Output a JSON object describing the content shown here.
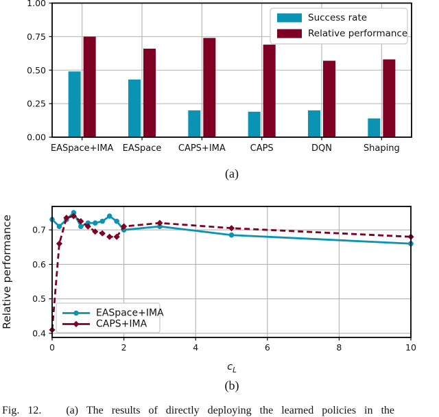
{
  "figure": {
    "panel_a_label": "(a)",
    "panel_b_label": "(b)",
    "caption": "Fig. 12.   (a) The results of directly deploying the learned policies in the"
  },
  "colors": {
    "teal": "#0a93b3",
    "dark_red": "#7e0023",
    "grid": "#b2b2b2",
    "spine": "#000000",
    "legend_border": "#c8c8c8"
  },
  "chart_data": [
    {
      "type": "bar",
      "panel": "a",
      "categories": [
        "EASpace+IMA",
        "EASpace",
        "CAPS+IMA",
        "CAPS",
        "DQN",
        "Shaping"
      ],
      "series": [
        {
          "name": "Success rate",
          "color_key": "teal",
          "values": [
            0.49,
            0.43,
            0.2,
            0.19,
            0.2,
            0.14
          ]
        },
        {
          "name": "Relative performance",
          "color_key": "dark_red",
          "values": [
            0.75,
            0.66,
            0.74,
            0.69,
            0.57,
            0.58
          ]
        }
      ],
      "ylim": [
        0.0,
        1.0
      ],
      "yticks": [
        0.0,
        0.25,
        0.5,
        0.75,
        1.0
      ],
      "ytick_labels": [
        "0.00",
        "0.25",
        "0.50",
        "0.75",
        "1.00"
      ],
      "grid": true,
      "legend_position": "upper right"
    },
    {
      "type": "line",
      "panel": "b",
      "xlabel": "c_L",
      "ylabel": "Relative performance",
      "xlim": [
        0,
        10
      ],
      "ylim": [
        0.388,
        0.768
      ],
      "xticks": [
        0,
        2,
        4,
        6,
        8,
        10
      ],
      "yticks": [
        0.4,
        0.5,
        0.6,
        0.7
      ],
      "grid": true,
      "legend_position": "lower left",
      "series": [
        {
          "name": "EASpace+IMA",
          "color_key": "teal",
          "style": "solid",
          "marker": "circle",
          "x": [
            0,
            0.2,
            0.4,
            0.6,
            0.8,
            1.0,
            1.2,
            1.4,
            1.6,
            1.8,
            2.0,
            3.0,
            5.0,
            10.0
          ],
          "y": [
            0.73,
            0.71,
            0.73,
            0.75,
            0.71,
            0.72,
            0.72,
            0.725,
            0.74,
            0.725,
            0.7,
            0.71,
            0.685,
            0.66
          ]
        },
        {
          "name": "CAPS+IMA",
          "color_key": "dark_red",
          "style": "dashed",
          "marker": "diamond",
          "x": [
            0,
            0.2,
            0.4,
            0.6,
            0.8,
            1.0,
            1.2,
            1.4,
            1.6,
            1.8,
            2.0,
            3.0,
            5.0,
            10.0
          ],
          "y": [
            0.41,
            0.66,
            0.735,
            0.74,
            0.725,
            0.71,
            0.695,
            0.69,
            0.68,
            0.68,
            0.71,
            0.72,
            0.705,
            0.68
          ]
        }
      ]
    }
  ]
}
